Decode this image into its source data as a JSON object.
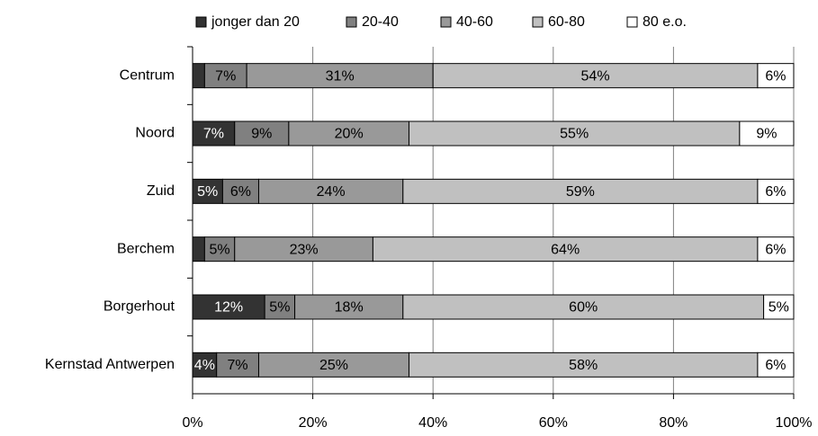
{
  "chart_data": {
    "type": "stacked-bar-horizontal",
    "categories": [
      "Centrum",
      "Noord",
      "Zuid",
      "Berchem",
      "Borgerhout",
      "Kernstad Antwerpen"
    ],
    "series": [
      {
        "name": "jonger dan 20",
        "color": "#333333",
        "values": [
          2,
          7,
          5,
          2,
          12,
          4
        ],
        "value_labels": [
          null,
          "7%",
          "5%",
          null,
          "12%",
          "4%"
        ]
      },
      {
        "name": "20-40",
        "color": "#808080",
        "values": [
          7,
          9,
          6,
          5,
          5,
          7
        ],
        "value_labels": [
          "7%",
          "9%",
          "6%",
          "5%",
          "5%",
          "7%"
        ]
      },
      {
        "name": "40-60",
        "color": "#999999",
        "values": [
          31,
          20,
          24,
          23,
          18,
          25
        ],
        "value_labels": [
          "31%",
          "20%",
          "24%",
          "23%",
          "18%",
          "25%"
        ]
      },
      {
        "name": "60-80",
        "color": "#c0c0c0",
        "values": [
          54,
          55,
          59,
          64,
          60,
          58
        ],
        "value_labels": [
          "54%",
          "55%",
          "59%",
          "64%",
          "60%",
          "58%"
        ]
      },
      {
        "name": "80 e.o.",
        "color": "#ffffff",
        "values": [
          6,
          9,
          6,
          6,
          5,
          6
        ],
        "value_labels": [
          "6%",
          "9%",
          "6%",
          "6%",
          "5%",
          "6%"
        ]
      }
    ],
    "xlim": [
      0,
      100
    ],
    "xticks": [
      {
        "value": 0,
        "label": "0%"
      },
      {
        "value": 20,
        "label": "20%"
      },
      {
        "value": 40,
        "label": "40%"
      },
      {
        "value": 60,
        "label": "60%"
      },
      {
        "value": 80,
        "label": "80%"
      },
      {
        "value": 100,
        "label": "100%"
      }
    ],
    "grid": true,
    "legend": "top"
  }
}
